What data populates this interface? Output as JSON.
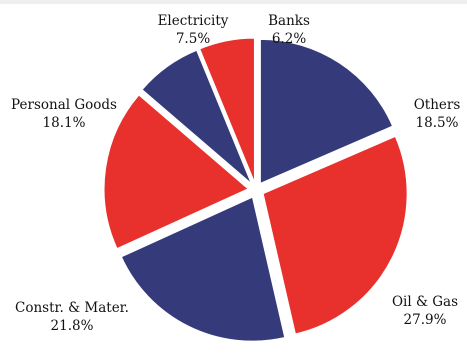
{
  "chart_data": {
    "type": "pie",
    "exploded": true,
    "start_angle_deg": 0,
    "direction": "clockwise",
    "slices": [
      {
        "label": "Others",
        "value": 18.5,
        "value_label": "18.5%",
        "color": "#353a7a"
      },
      {
        "label": "Oil & Gas",
        "value": 27.9,
        "value_label": "27.9%",
        "color": "#e8302c"
      },
      {
        "label": "Constr. & Mater.",
        "value": 21.8,
        "value_label": "21.8%",
        "color": "#353a7a"
      },
      {
        "label": "Personal Goods",
        "value": 18.1,
        "value_label": "18.1%",
        "color": "#e8302c"
      },
      {
        "label": "Electricity",
        "value": 7.5,
        "value_label": "7.5%",
        "color": "#353a7a"
      },
      {
        "label": "Banks",
        "value": 6.2,
        "value_label": "6.2%",
        "color": "#e8302c"
      }
    ]
  }
}
